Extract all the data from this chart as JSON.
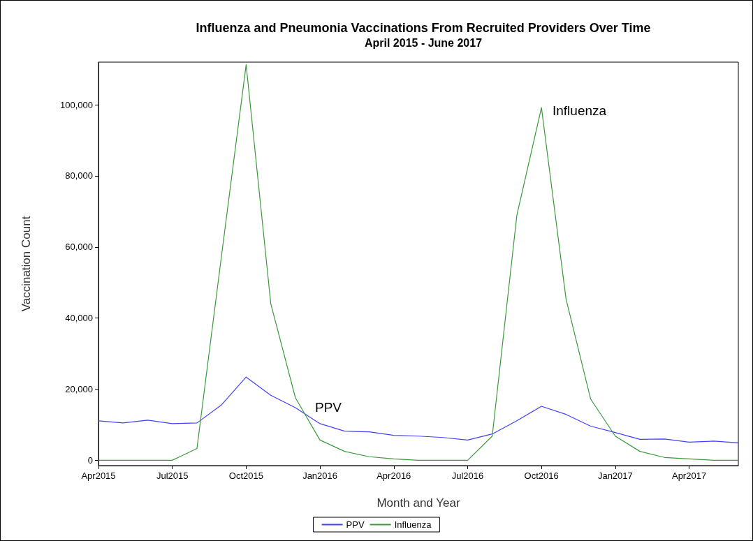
{
  "chart_data": {
    "type": "line",
    "title": "Influenza and Pneumonia Vaccinations From Recruited Providers Over Time",
    "subtitle": "April 2015 - June 2017",
    "xlabel": "Month and Year",
    "ylabel": "Vaccination Count",
    "categories": [
      "Apr2015",
      null,
      null,
      "Jul2015",
      null,
      null,
      "Oct2015",
      null,
      null,
      "Jan2016",
      null,
      null,
      "Apr2016",
      null,
      null,
      "Jul2016",
      null,
      null,
      "Oct2016",
      null,
      null,
      "Jan2017",
      null,
      null,
      "Apr2017",
      null,
      null
    ],
    "series": [
      {
        "name": "PPV",
        "color": "#4040ff",
        "values": [
          11100,
          10500,
          11300,
          10300,
          10500,
          15600,
          23400,
          18300,
          14800,
          10300,
          8200,
          8000,
          7000,
          6800,
          6400,
          5700,
          7400,
          11100,
          15200,
          12900,
          9600,
          7800,
          5900,
          6000,
          5100,
          5400,
          4900
        ]
      },
      {
        "name": "Influenza",
        "color": "#3a9a3a",
        "values": [
          0,
          0,
          0,
          0,
          3300,
          57600,
          111300,
          44100,
          17600,
          5700,
          2500,
          1000,
          400,
          0,
          0,
          0,
          6800,
          68900,
          99200,
          45300,
          17200,
          6800,
          2500,
          800,
          400,
          0,
          0
        ]
      }
    ],
    "ylim": [
      -1500,
      112000
    ],
    "yticks": [
      0,
      {
        "value": 20000,
        "label": "20,000"
      },
      {
        "value": 40000,
        "label": "40,000"
      },
      {
        "value": 60000,
        "label": "60,000"
      },
      {
        "value": 80000,
        "label": "80,000"
      },
      {
        "value": 100000,
        "label": "100,000"
      }
    ],
    "annotations": [
      "PPV",
      "Influenza"
    ],
    "legend": "bottom",
    "grid": false,
    "marker": "none",
    "line_style": "solid"
  }
}
